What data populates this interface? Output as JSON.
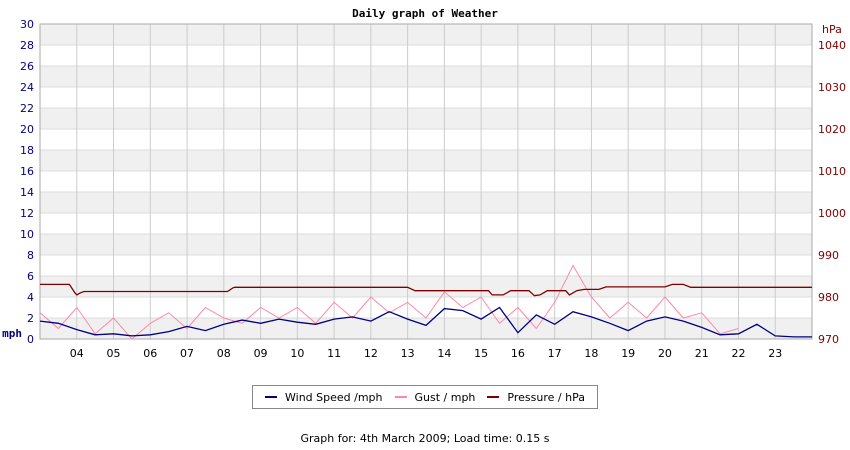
{
  "chart_data": {
    "type": "line",
    "title": "Daily graph of Weather",
    "left_axis": {
      "unit": "mph",
      "ylim": [
        0,
        30
      ],
      "ticks": [
        0,
        2,
        4,
        6,
        8,
        10,
        12,
        14,
        16,
        18,
        20,
        22,
        24,
        26,
        28,
        30
      ],
      "color": "#000080"
    },
    "right_axis": {
      "unit": "hPa",
      "ylim": [
        970,
        1045
      ],
      "ticks": [
        970,
        980,
        990,
        1000,
        1010,
        1020,
        1030,
        1040
      ],
      "color": "#800000"
    },
    "x_axis": {
      "range": [
        3.0,
        24.0
      ],
      "ticks": [
        "04",
        "05",
        "06",
        "07",
        "08",
        "09",
        "10",
        "11",
        "12",
        "13",
        "14",
        "15",
        "16",
        "17",
        "18",
        "19",
        "20",
        "21",
        "22",
        "23"
      ]
    },
    "grid": true,
    "legend_position": "bottom",
    "series": [
      {
        "name": "Wind Speed /mph",
        "axis": "left",
        "color": "#000080",
        "x": [
          3.0,
          3.5,
          4.0,
          4.5,
          5.0,
          5.5,
          6.0,
          6.5,
          7.0,
          7.5,
          8.0,
          8.5,
          9.0,
          9.5,
          10.0,
          10.5,
          11.0,
          11.5,
          12.0,
          12.5,
          13.0,
          13.5,
          14.0,
          14.5,
          15.0,
          15.5,
          16.0,
          16.5,
          17.0,
          17.5,
          18.0,
          18.5,
          19.0,
          19.5,
          20.0,
          20.5,
          21.0,
          21.5,
          22.0,
          22.5,
          23.0,
          23.5,
          24.0
        ],
        "values": [
          1.7,
          1.5,
          0.9,
          0.4,
          0.5,
          0.3,
          0.4,
          0.7,
          1.2,
          0.8,
          1.4,
          1.8,
          1.5,
          1.9,
          1.6,
          1.4,
          1.9,
          2.1,
          1.7,
          2.6,
          1.9,
          1.3,
          2.9,
          2.7,
          1.9,
          3.0,
          0.6,
          2.3,
          1.4,
          2.6,
          2.1,
          1.5,
          0.8,
          1.7,
          2.1,
          1.7,
          1.1,
          0.4,
          0.5,
          1.4,
          0.3,
          0.2,
          0.2
        ]
      },
      {
        "name": "Gust / mph",
        "axis": "left",
        "color": "#ff88aa",
        "x": [
          3.0,
          3.5,
          4.0,
          4.5,
          5.0,
          5.5,
          6.0,
          6.5,
          7.0,
          7.5,
          8.0,
          8.5,
          9.0,
          9.5,
          10.0,
          10.5,
          11.0,
          11.5,
          12.0,
          12.5,
          13.0,
          13.5,
          14.0,
          14.5,
          15.0,
          15.5,
          16.0,
          16.5,
          17.0,
          17.5,
          18.0,
          18.5,
          19.0,
          19.5,
          20.0,
          20.5,
          21.0,
          21.5,
          22.0
        ],
        "values": [
          2.5,
          1.0,
          3.0,
          0.5,
          2.0,
          0.0,
          1.5,
          2.5,
          1.0,
          3.0,
          2.0,
          1.5,
          3.0,
          2.0,
          3.0,
          1.5,
          3.5,
          2.0,
          4.0,
          2.5,
          3.5,
          2.0,
          4.5,
          3.0,
          4.0,
          1.5,
          3.0,
          1.0,
          3.5,
          7.0,
          4.0,
          2.0,
          3.5,
          2.0,
          4.0,
          2.0,
          2.5,
          0.5,
          1.0
        ]
      },
      {
        "name": "Pressure / hPa",
        "axis": "right",
        "color": "#800000",
        "x": [
          3.0,
          3.8,
          3.95,
          4.0,
          4.1,
          4.2,
          8.1,
          8.25,
          8.3,
          13.0,
          13.2,
          15.2,
          15.3,
          15.6,
          15.8,
          16.3,
          16.45,
          16.6,
          16.8,
          17.3,
          17.4,
          17.6,
          17.8,
          18.2,
          18.4,
          20.0,
          20.2,
          20.5,
          20.7,
          24.0
        ],
        "values": [
          983.0,
          983.0,
          981.0,
          980.5,
          981.0,
          981.3,
          981.3,
          982.2,
          982.3,
          982.3,
          981.5,
          981.5,
          980.5,
          980.5,
          981.5,
          981.5,
          980.3,
          980.5,
          981.5,
          981.5,
          980.5,
          981.5,
          981.8,
          981.8,
          982.4,
          982.4,
          983.0,
          983.0,
          982.3,
          982.3
        ]
      }
    ]
  },
  "footer": "Graph for: 4th March 2009; Load time: 0.15 s"
}
